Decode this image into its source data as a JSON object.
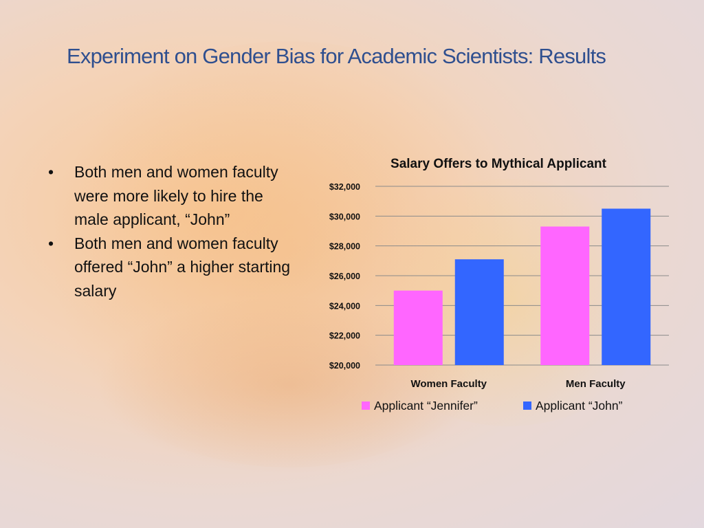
{
  "slide": {
    "title": "Experiment on Gender Bias for Academic Scientists: Results",
    "bullets": [
      "Both men and women faculty were more likely to hire the male applicant, “John”",
      " Both men and women faculty offered “John” a higher starting salary"
    ],
    "bullet_symbol": "•"
  },
  "chart_data": {
    "type": "bar",
    "title": "Salary Offers to Mythical Applicant",
    "categories": [
      "Women Faculty",
      "Men Faculty"
    ],
    "series": [
      {
        "name": "Applicant “Jennifer”",
        "values": [
          25000,
          29300
        ],
        "color": "#ff66ff"
      },
      {
        "name": "Applicant “John”",
        "values": [
          27100,
          30500
        ],
        "color": "#3366ff"
      }
    ],
    "ylim": [
      20000,
      32000
    ],
    "yticks": [
      "$20,000",
      "$22,000",
      "$24,000",
      "$26,000",
      "$28,000",
      "$30,000",
      "$32,000"
    ],
    "ytick_values": [
      20000,
      22000,
      24000,
      26000,
      28000,
      30000,
      32000
    ],
    "grid": true,
    "legend_position": "bottom"
  }
}
